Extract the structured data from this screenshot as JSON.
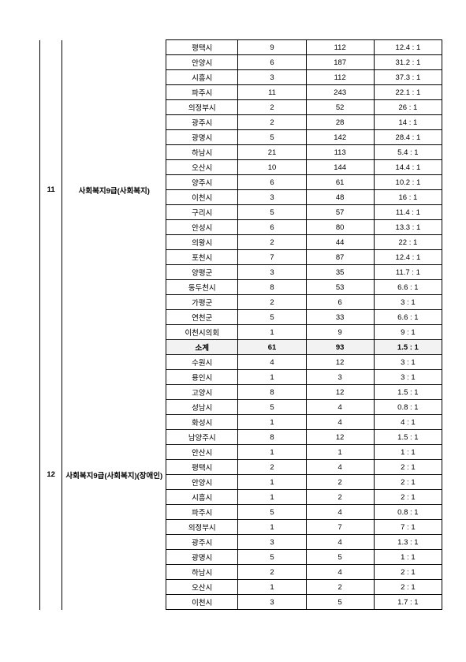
{
  "groups": [
    {
      "index": "11",
      "category": "사회복지9급(사회복지)",
      "rows": [
        {
          "city": "평택시",
          "a": "9",
          "b": "112",
          "r": "12.4 : 1"
        },
        {
          "city": "안양시",
          "a": "6",
          "b": "187",
          "r": "31.2 : 1"
        },
        {
          "city": "시흥시",
          "a": "3",
          "b": "112",
          "r": "37.3 : 1"
        },
        {
          "city": "파주시",
          "a": "11",
          "b": "243",
          "r": "22.1 : 1"
        },
        {
          "city": "의정부시",
          "a": "2",
          "b": "52",
          "r": "26 : 1"
        },
        {
          "city": "광주시",
          "a": "2",
          "b": "28",
          "r": "14 : 1"
        },
        {
          "city": "광명시",
          "a": "5",
          "b": "142",
          "r": "28.4 : 1"
        },
        {
          "city": "하남시",
          "a": "21",
          "b": "113",
          "r": "5.4 : 1"
        },
        {
          "city": "오산시",
          "a": "10",
          "b": "144",
          "r": "14.4 : 1"
        },
        {
          "city": "양주시",
          "a": "6",
          "b": "61",
          "r": "10.2 : 1"
        },
        {
          "city": "이천시",
          "a": "3",
          "b": "48",
          "r": "16 : 1"
        },
        {
          "city": "구리시",
          "a": "5",
          "b": "57",
          "r": "11.4 : 1"
        },
        {
          "city": "안성시",
          "a": "6",
          "b": "80",
          "r": "13.3 : 1"
        },
        {
          "city": "의왕시",
          "a": "2",
          "b": "44",
          "r": "22 : 1"
        },
        {
          "city": "포천시",
          "a": "7",
          "b": "87",
          "r": "12.4 : 1"
        },
        {
          "city": "양평군",
          "a": "3",
          "b": "35",
          "r": "11.7 : 1"
        },
        {
          "city": "동두천시",
          "a": "8",
          "b": "53",
          "r": "6.6 : 1"
        },
        {
          "city": "가평군",
          "a": "2",
          "b": "6",
          "r": "3 : 1"
        },
        {
          "city": "연천군",
          "a": "5",
          "b": "33",
          "r": "6.6 : 1"
        },
        {
          "city": "이천시의회",
          "a": "1",
          "b": "9",
          "r": "9 : 1"
        }
      ]
    },
    {
      "index": "12",
      "category": "사회복지9급(사회복지)(장애인)",
      "subtotal": {
        "city": "소계",
        "a": "61",
        "b": "93",
        "r": "1.5 : 1"
      },
      "rows": [
        {
          "city": "수원시",
          "a": "4",
          "b": "12",
          "r": "3 : 1"
        },
        {
          "city": "용인시",
          "a": "1",
          "b": "3",
          "r": "3 : 1"
        },
        {
          "city": "고양시",
          "a": "8",
          "b": "12",
          "r": "1.5 : 1"
        },
        {
          "city": "성남시",
          "a": "5",
          "b": "4",
          "r": "0.8 : 1"
        },
        {
          "city": "화성시",
          "a": "1",
          "b": "4",
          "r": "4 : 1"
        },
        {
          "city": "남양주시",
          "a": "8",
          "b": "12",
          "r": "1.5 : 1"
        },
        {
          "city": "안산시",
          "a": "1",
          "b": "1",
          "r": "1 : 1"
        },
        {
          "city": "평택시",
          "a": "2",
          "b": "4",
          "r": "2 : 1"
        },
        {
          "city": "안양시",
          "a": "1",
          "b": "2",
          "r": "2 : 1"
        },
        {
          "city": "시흥시",
          "a": "1",
          "b": "2",
          "r": "2 : 1"
        },
        {
          "city": "파주시",
          "a": "5",
          "b": "4",
          "r": "0.8 : 1"
        },
        {
          "city": "의정부시",
          "a": "1",
          "b": "7",
          "r": "7 : 1"
        },
        {
          "city": "광주시",
          "a": "3",
          "b": "4",
          "r": "1.3 : 1"
        },
        {
          "city": "광명시",
          "a": "5",
          "b": "5",
          "r": "1 : 1"
        },
        {
          "city": "하남시",
          "a": "2",
          "b": "4",
          "r": "2 : 1"
        },
        {
          "city": "오산시",
          "a": "1",
          "b": "2",
          "r": "2 : 1"
        },
        {
          "city": "이천시",
          "a": "3",
          "b": "5",
          "r": "1.7 : 1"
        }
      ]
    }
  ]
}
